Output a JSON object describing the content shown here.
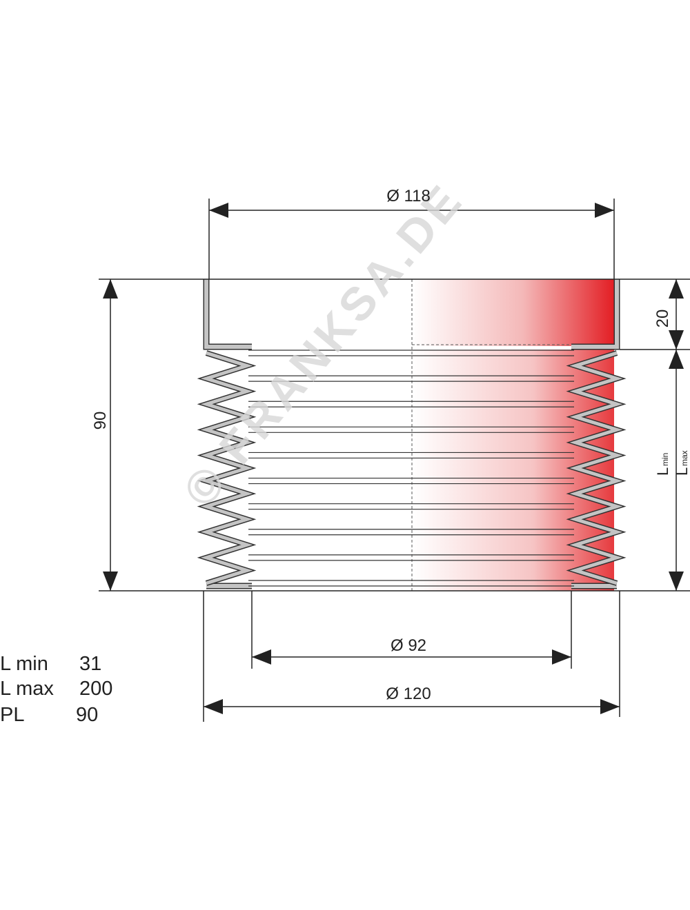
{
  "dimensions": {
    "top_diameter": "Ø 118",
    "inner_diameter": "Ø 92",
    "outer_diameter": "Ø 120",
    "height": "90",
    "flange_height": "20",
    "l_min_symbol": "L",
    "l_min_sub": "min",
    "l_max_symbol": "L",
    "l_max_sub": "max"
  },
  "specs": {
    "rows": [
      [
        "L min",
        "31"
      ],
      [
        "L max",
        "200"
      ],
      [
        "PL",
        "90"
      ]
    ]
  },
  "watermark": "© FRANKSA.DE"
}
